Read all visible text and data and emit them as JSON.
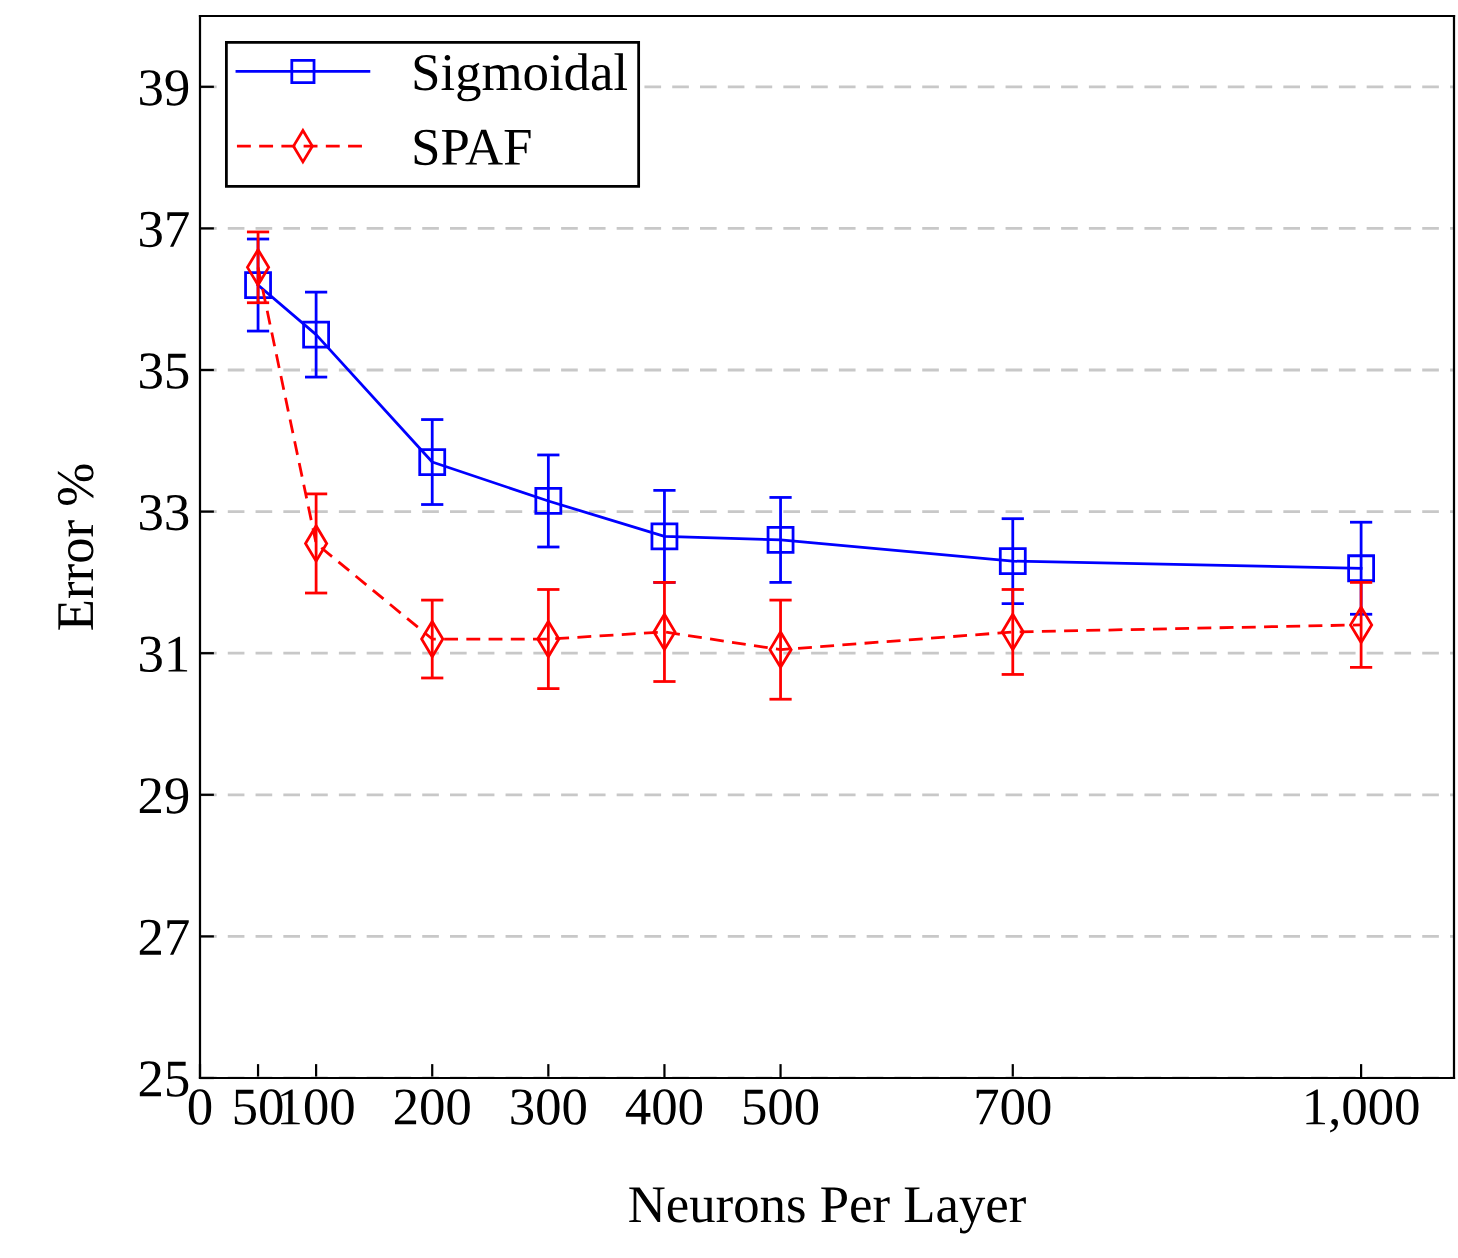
{
  "chart_data": {
    "type": "line",
    "xlabel": "Neurons Per Layer",
    "ylabel": "Error %",
    "x": [
      50,
      100,
      200,
      300,
      400,
      500,
      700,
      1000
    ],
    "series": [
      {
        "name": "Sigmoidal",
        "color": "#0000ff",
        "marker": "square",
        "line_style": "solid",
        "values": [
          36.2,
          35.5,
          33.7,
          33.15,
          32.65,
          32.6,
          32.3,
          32.2
        ],
        "errors": [
          0.65,
          0.6,
          0.6,
          0.65,
          0.65,
          0.6,
          0.6,
          0.65
        ]
      },
      {
        "name": "SPAF",
        "color": "#ff0000",
        "marker": "diamond",
        "line_style": "dashed",
        "values": [
          36.45,
          32.55,
          31.2,
          31.2,
          31.3,
          31.05,
          31.3,
          31.4
        ],
        "errors": [
          0.5,
          0.7,
          0.55,
          0.7,
          0.7,
          0.7,
          0.6,
          0.6
        ]
      }
    ],
    "xlim": [
      0,
      1080
    ],
    "ylim": [
      25,
      40
    ],
    "xticks": [
      0,
      50,
      100,
      200,
      300,
      400,
      500,
      700,
      {
        "value": 1000,
        "label": "1,000"
      }
    ],
    "yticks": [
      25,
      27,
      29,
      31,
      33,
      35,
      37,
      39
    ],
    "grid": "y",
    "legend": "top left"
  }
}
